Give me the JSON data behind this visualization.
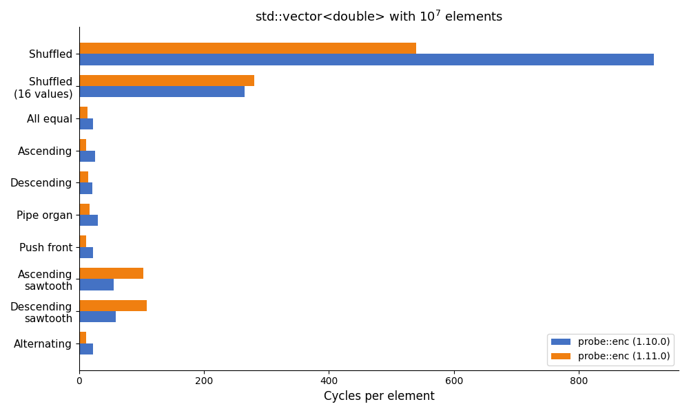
{
  "title_text": "std::vector<double> with $10^7$ elements",
  "xlabel": "Cycles per element",
  "categories": [
    "Shuffled",
    "Shuffled\n(16 values)",
    "All equal",
    "Ascending",
    "Descending",
    "Pipe organ",
    "Push front",
    "Ascending\nsawtooth",
    "Descending\nsawtooth",
    "Alternating"
  ],
  "v1_values": [
    920,
    265,
    22,
    25,
    21,
    30,
    22,
    55,
    58,
    22
  ],
  "v2_values": [
    540,
    280,
    13,
    11,
    14,
    17,
    11,
    103,
    108,
    11
  ],
  "v1_color": "#4472c4",
  "v2_color": "#f07f10",
  "v1_label": "probe::enc (1.10.0)",
  "v2_label": "probe::enc (1.11.0)",
  "xlim_max": 960,
  "bar_height": 0.35,
  "figsize": [
    10,
    6
  ],
  "dpi": 100,
  "title_fontsize": 13,
  "label_fontsize": 11,
  "xlabel_fontsize": 12,
  "legend_fontsize": 10
}
